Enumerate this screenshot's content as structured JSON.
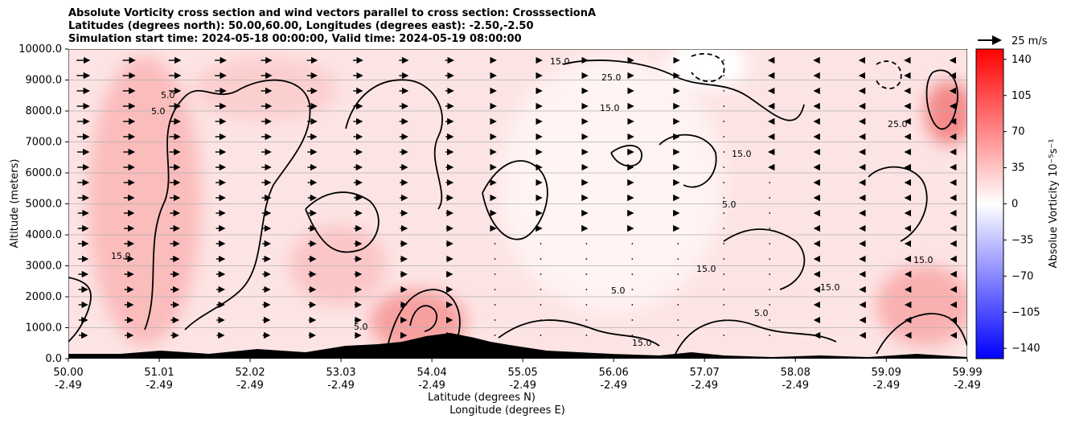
{
  "chart_data": {
    "type": "heatmap",
    "title_lines": [
      "Absolute Vorticity cross section and wind vectors parallel to cross section: CrosssectionA",
      "Latitudes (degrees north): 50.00,60.00, Longitudes (degrees east): -2.50,-2.50",
      "Simulation start time: 2024-05-18 00:00:00, Valid time: 2024-05-19 08:00:00"
    ],
    "ylabel": "Altitude (meters)",
    "xlabel_lines": [
      "Latitude (degrees N)",
      "Longitude (degrees E)"
    ],
    "ylim": [
      0,
      10000
    ],
    "y_ticks": [
      0,
      1000,
      2000,
      3000,
      4000,
      5000,
      6000,
      7000,
      8000,
      9000,
      10000
    ],
    "y_tick_labels": [
      "0.0",
      "1000.0",
      "2000.0",
      "3000.0",
      "4000.0",
      "5000.0",
      "6000.0",
      "7000.0",
      "8000.0",
      "9000.0",
      "10000.0"
    ],
    "xlim": [
      50.0,
      59.99
    ],
    "x_ticks": [
      50.0,
      51.01,
      52.02,
      53.03,
      54.04,
      55.05,
      56.06,
      57.07,
      58.08,
      59.09,
      59.99
    ],
    "x_tick_lat_labels": [
      "50.00",
      "51.01",
      "52.02",
      "53.03",
      "54.04",
      "55.05",
      "56.06",
      "57.07",
      "58.08",
      "59.09",
      "59.99"
    ],
    "x_tick_lon_labels": [
      "-2.49",
      "-2.49",
      "-2.49",
      "-2.49",
      "-2.49",
      "-2.49",
      "-2.49",
      "-2.49",
      "-2.49",
      "-2.49",
      "-2.49"
    ],
    "colorbar": {
      "label": "Absolue Vorticity 10⁻⁵s⁻¹",
      "range": [
        -150,
        150
      ],
      "ticks": [
        -140,
        -105,
        -70,
        -35,
        0,
        35,
        70,
        105,
        140
      ],
      "tick_labels": [
        "−140",
        "−105",
        "−70",
        "−35",
        "0",
        "35",
        "70",
        "105",
        "140"
      ],
      "colors": {
        "low": "#0000ff",
        "mid": "#ffffff",
        "high": "#ff0000"
      }
    },
    "vector_key": {
      "label": "25 m/s",
      "speed": 25
    },
    "contour_levels": [
      -5.0,
      5.0,
      15.0,
      25.0
    ],
    "grid": "horizontal"
  }
}
